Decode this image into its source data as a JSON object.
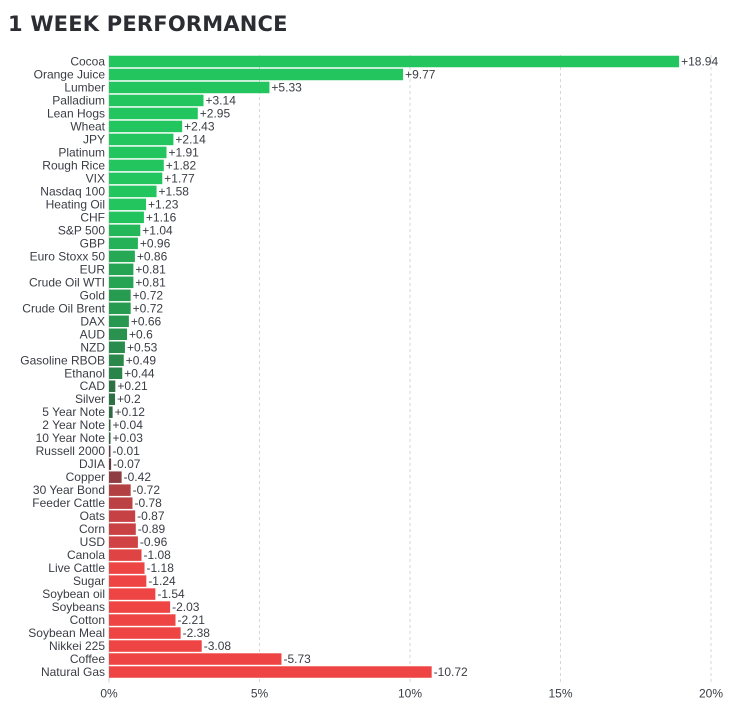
{
  "chart_data": {
    "type": "bar",
    "orientation": "horizontal",
    "title": "1 WEEK PERFORMANCE",
    "xlim": [
      0,
      20
    ],
    "x_ticks": [
      "0%",
      "5%",
      "10%",
      "15%",
      "20%"
    ],
    "grid": "vertical dashed",
    "categories": [
      "Cocoa",
      "Orange Juice",
      "Lumber",
      "Palladium",
      "Lean Hogs",
      "Wheat",
      "JPY",
      "Platinum",
      "Rough Rice",
      "VIX",
      "Nasdaq 100",
      "Heating Oil",
      "CHF",
      "S&P 500",
      "GBP",
      "Euro Stoxx 50",
      "EUR",
      "Crude Oil WTI",
      "Gold",
      "Crude Oil Brent",
      "DAX",
      "AUD",
      "NZD",
      "Gasoline RBOB",
      "Ethanol",
      "CAD",
      "Silver",
      "5 Year Note",
      "2 Year Note",
      "10 Year Note",
      "Russell 2000",
      "DJIA",
      "Copper",
      "30 Year Bond",
      "Feeder Cattle",
      "Oats",
      "Corn",
      "USD",
      "Canola",
      "Live Cattle",
      "Sugar",
      "Soybean oil",
      "Soybeans",
      "Cotton",
      "Soybean Meal",
      "Nikkei 225",
      "Coffee",
      "Natural Gas"
    ],
    "values": [
      18.94,
      9.77,
      5.33,
      3.14,
      2.95,
      2.43,
      2.14,
      1.91,
      1.82,
      1.77,
      1.58,
      1.23,
      1.16,
      1.04,
      0.96,
      0.86,
      0.81,
      0.81,
      0.72,
      0.72,
      0.66,
      0.6,
      0.53,
      0.49,
      0.44,
      0.21,
      0.2,
      0.12,
      0.04,
      0.03,
      -0.01,
      -0.07,
      -0.42,
      -0.72,
      -0.78,
      -0.87,
      -0.89,
      -0.96,
      -1.08,
      -1.18,
      -1.24,
      -1.54,
      -2.03,
      -2.21,
      -2.38,
      -3.08,
      -5.73,
      -10.72
    ],
    "value_labels": [
      "+18.94",
      "+9.77",
      "+5.33",
      "+3.14",
      "+2.95",
      "+2.43",
      "+2.14",
      "+1.91",
      "+1.82",
      "+1.77",
      "+1.58",
      "+1.23",
      "+1.16",
      "+1.04",
      "+0.96",
      "+0.86",
      "+0.81",
      "+0.81",
      "+0.72",
      "+0.72",
      "+0.66",
      "+0.6",
      "+0.53",
      "+0.49",
      "+0.44",
      "+0.21",
      "+0.2",
      "+0.12",
      "+0.04",
      "+0.03",
      "-0.01",
      "-0.07",
      "-0.42",
      "-0.72",
      "-0.78",
      "-0.87",
      "-0.89",
      "-0.96",
      "-1.08",
      "-1.18",
      "-1.24",
      "-1.54",
      "-2.03",
      "-2.21",
      "-2.38",
      "-3.08",
      "-5.73",
      "-10.72"
    ],
    "colors": {
      "positive_strong": "#22c55e",
      "positive_weak": "#2f5f3d",
      "negative_weak": "#5a3a42",
      "negative_strong": "#ef4444",
      "grid": "#d4d6da"
    }
  }
}
